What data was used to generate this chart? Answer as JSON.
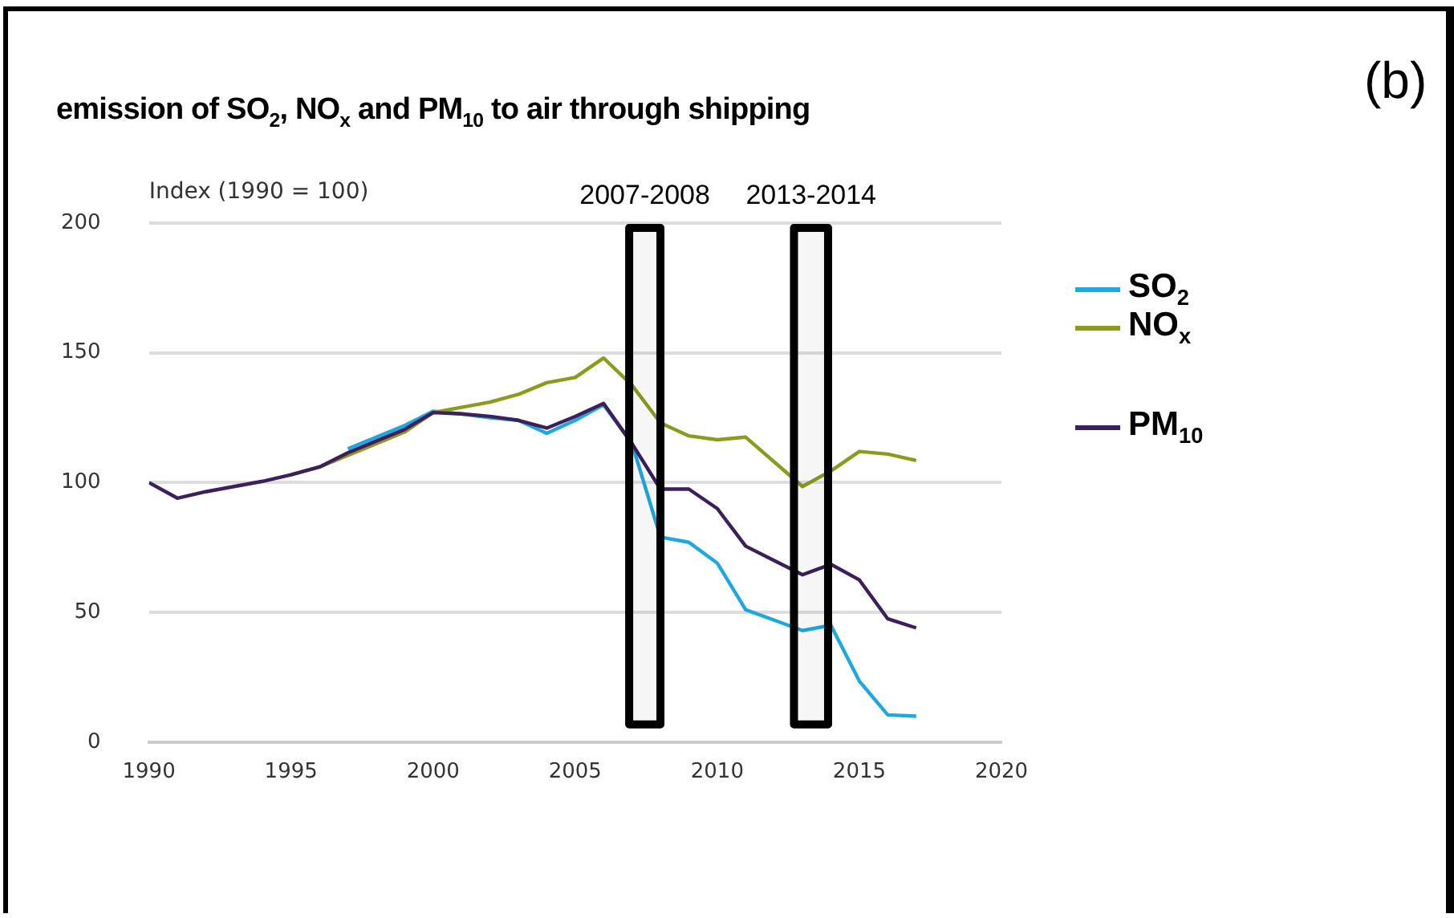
{
  "chart_data": {
    "type": "line",
    "title": "emission of SO$_{2}$, NO$_{x}$ and PM$_{10}$ to air through shipping",
    "ylabel": "Index (1990 = 100)",
    "annotations": [
      "(b)"
    ],
    "x": [
      1990,
      1991,
      1992,
      1993,
      1994,
      1995,
      1996,
      1997,
      1998,
      1999,
      2000,
      2001,
      2002,
      2003,
      2004,
      2005,
      2006,
      2007,
      2008,
      2009,
      2010,
      2011,
      2012,
      2013,
      2014,
      2015,
      2016,
      2017
    ],
    "series": [
      {
        "name": "SO$_{2}$",
        "color": "#1ea7e1",
        "values": [
          null,
          null,
          null,
          null,
          null,
          null,
          null,
          113,
          117.5,
          122,
          127.5,
          126.5,
          125,
          124,
          119,
          124,
          130,
          115,
          79,
          77,
          69,
          51,
          47,
          43,
          45,
          23.5,
          10.5,
          10
        ]
      },
      {
        "name": "NO$_{x}$",
        "color": "#8c9a1e",
        "values": [
          null,
          null,
          null,
          null,
          null,
          103,
          106,
          110.5,
          115,
          119.5,
          127,
          129,
          131,
          134,
          138.5,
          140.5,
          148,
          137.5,
          123,
          118,
          116.5,
          117.5,
          108,
          98.5,
          104.5,
          112,
          111,
          108.5
        ]
      },
      {
        "name": "PM$_{10}$",
        "color": "#3d1f5c",
        "values": [
          100,
          94,
          96.5,
          98.5,
          100.5,
          103,
          106,
          111.5,
          116,
          120.5,
          127,
          126.5,
          125.5,
          124,
          121,
          125.5,
          130.5,
          115,
          97.5,
          97.5,
          90,
          75.5,
          70,
          64.5,
          68.5,
          62.5,
          47.5,
          44
        ]
      }
    ],
    "xlim": [
      1990,
      2020
    ],
    "xticks": [
      1990,
      1995,
      2000,
      2005,
      2010,
      2015,
      2020
    ],
    "ylim": [
      0,
      200
    ],
    "yticks": [
      0,
      50,
      100,
      150,
      200
    ],
    "bands": [
      {
        "axis": "x",
        "from": 2006.9,
        "to": 2008,
        "label": "2007-2008",
        "color": "#000000"
      },
      {
        "axis": "x",
        "from": 2012.7,
        "to": 2013.9,
        "label": "2013-2014",
        "color": "#000000"
      }
    ],
    "grid": "y",
    "legend": "right",
    "marker": "none",
    "line_style": "solid"
  }
}
